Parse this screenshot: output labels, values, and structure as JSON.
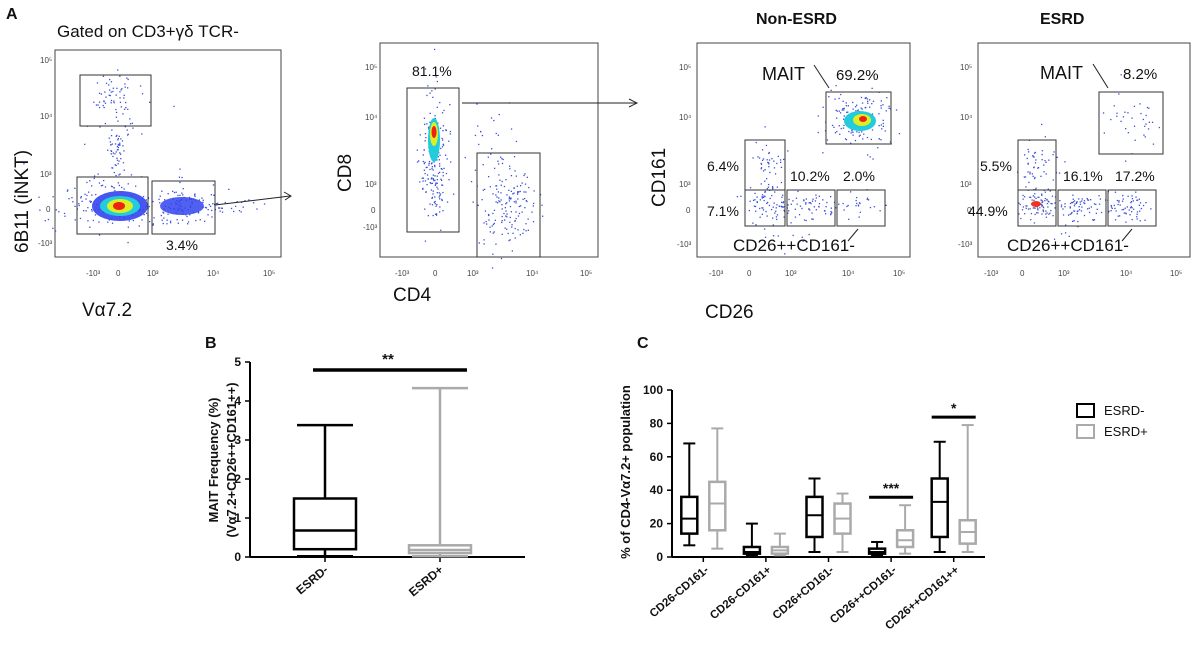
{
  "panels": {
    "A": {
      "label": "A",
      "plot1": {
        "title": "Gated on CD3+γδ TCR-",
        "xlabel": "Vα7.2",
        "ylabel": "6B11 (iNKT)",
        "gate_pct": "3.4%",
        "tick_y": [
          "10⁵",
          "10⁴",
          "10³",
          "0",
          "-10³"
        ],
        "tick_x": [
          "-10³",
          "0",
          "10³",
          "10⁴",
          "10⁵"
        ]
      },
      "plot2": {
        "xlabel": "CD4",
        "ylabel": "CD8",
        "gate_pct": "81.1%",
        "tick_y": [
          "10⁵",
          "10⁴",
          "10³",
          "0",
          "-10³"
        ],
        "tick_x": [
          "-10³",
          "0",
          "10³",
          "10⁴",
          "10⁵"
        ]
      },
      "plot3": {
        "title": "Non-ESRD",
        "xlabel": "CD26",
        "ylabel": "CD161",
        "mait_label": "MAIT",
        "mait_pct": "69.2%",
        "pcts": [
          "6.4%",
          "10.2%",
          "2.0%",
          "7.1%"
        ],
        "gate_label": "CD26++CD161-",
        "tick_y": [
          "10⁵",
          "10⁴",
          "10³",
          "0",
          "-10³"
        ],
        "tick_x": [
          "-10³",
          "0",
          "10³",
          "10⁴",
          "10⁵"
        ]
      },
      "plot4": {
        "title": "ESRD",
        "mait_label": "MAIT",
        "mait_pct": "8.2%",
        "pcts": [
          "5.5%",
          "16.1%",
          "17.2%",
          "44.9%"
        ],
        "gate_label": "CD26++CD161-",
        "tick_y": [
          "10⁵",
          "10⁴",
          "10³",
          "0",
          "-10³"
        ],
        "tick_x": [
          "-10³",
          "0",
          "10³",
          "10⁴",
          "10⁵"
        ]
      }
    },
    "B": {
      "label": "B"
    },
    "C": {
      "label": "C"
    }
  },
  "chart_data": [
    {
      "panel": "B",
      "type": "box",
      "ylabel_line1": "MAIT Frequency (%)",
      "ylabel_line2": "(Vα7.2+CD26++CD161++)",
      "ylim": [
        0,
        5
      ],
      "yticks": [
        "0",
        "1",
        "2",
        "3",
        "4",
        "5"
      ],
      "categories": [
        "ESRD-",
        "ESRD+"
      ],
      "colors": [
        "#000000",
        "#aaaaaa"
      ],
      "boxes": [
        {
          "name": "ESRD-",
          "min": 0.02,
          "q1": 0.2,
          "median": 0.68,
          "q3": 1.5,
          "max": 3.38
        },
        {
          "name": "ESRD+",
          "min": 0.02,
          "q1": 0.1,
          "median": 0.18,
          "q3": 0.3,
          "max": 4.33
        }
      ],
      "significance": "**"
    },
    {
      "panel": "C",
      "type": "box",
      "ylabel": "% of CD4-Vα7.2+ population",
      "ylim": [
        0,
        100
      ],
      "yticks": [
        "0",
        "20",
        "40",
        "60",
        "80",
        "100"
      ],
      "categories": [
        "CD26-CD161-",
        "CD26-CD161+",
        "CD26+CD161-",
        "CD26++CD161-",
        "CD26++CD161++"
      ],
      "series": [
        {
          "name": "ESRD-",
          "color": "#000000",
          "boxes": [
            {
              "min": 7,
              "q1": 14,
              "median": 23,
              "q3": 36,
              "max": 68
            },
            {
              "min": 1,
              "q1": 2,
              "median": 3,
              "q3": 6,
              "max": 20
            },
            {
              "min": 3,
              "q1": 12,
              "median": 25,
              "q3": 36,
              "max": 47
            },
            {
              "min": 1,
              "q1": 2,
              "median": 3,
              "q3": 5,
              "max": 9
            },
            {
              "min": 3,
              "q1": 12,
              "median": 33,
              "q3": 47,
              "max": 69
            }
          ]
        },
        {
          "name": "ESRD+",
          "color": "#aaaaaa",
          "boxes": [
            {
              "min": 5,
              "q1": 16,
              "median": 32,
              "q3": 45,
              "max": 77
            },
            {
              "min": 1,
              "q1": 2,
              "median": 4,
              "q3": 6,
              "max": 14
            },
            {
              "min": 3,
              "q1": 14,
              "median": 23,
              "q3": 32,
              "max": 38
            },
            {
              "min": 2,
              "q1": 6,
              "median": 10,
              "q3": 16,
              "max": 31
            },
            {
              "min": 3,
              "q1": 8,
              "median": 15,
              "q3": 22,
              "max": 79
            }
          ]
        }
      ],
      "significance": [
        {
          "category": "CD26++CD161-",
          "label": "***"
        },
        {
          "category": "CD26++CD161++",
          "label": "*"
        }
      ],
      "legend": {
        "position": "top-right",
        "entries": [
          "ESRD-",
          "ESRD+"
        ]
      }
    }
  ]
}
